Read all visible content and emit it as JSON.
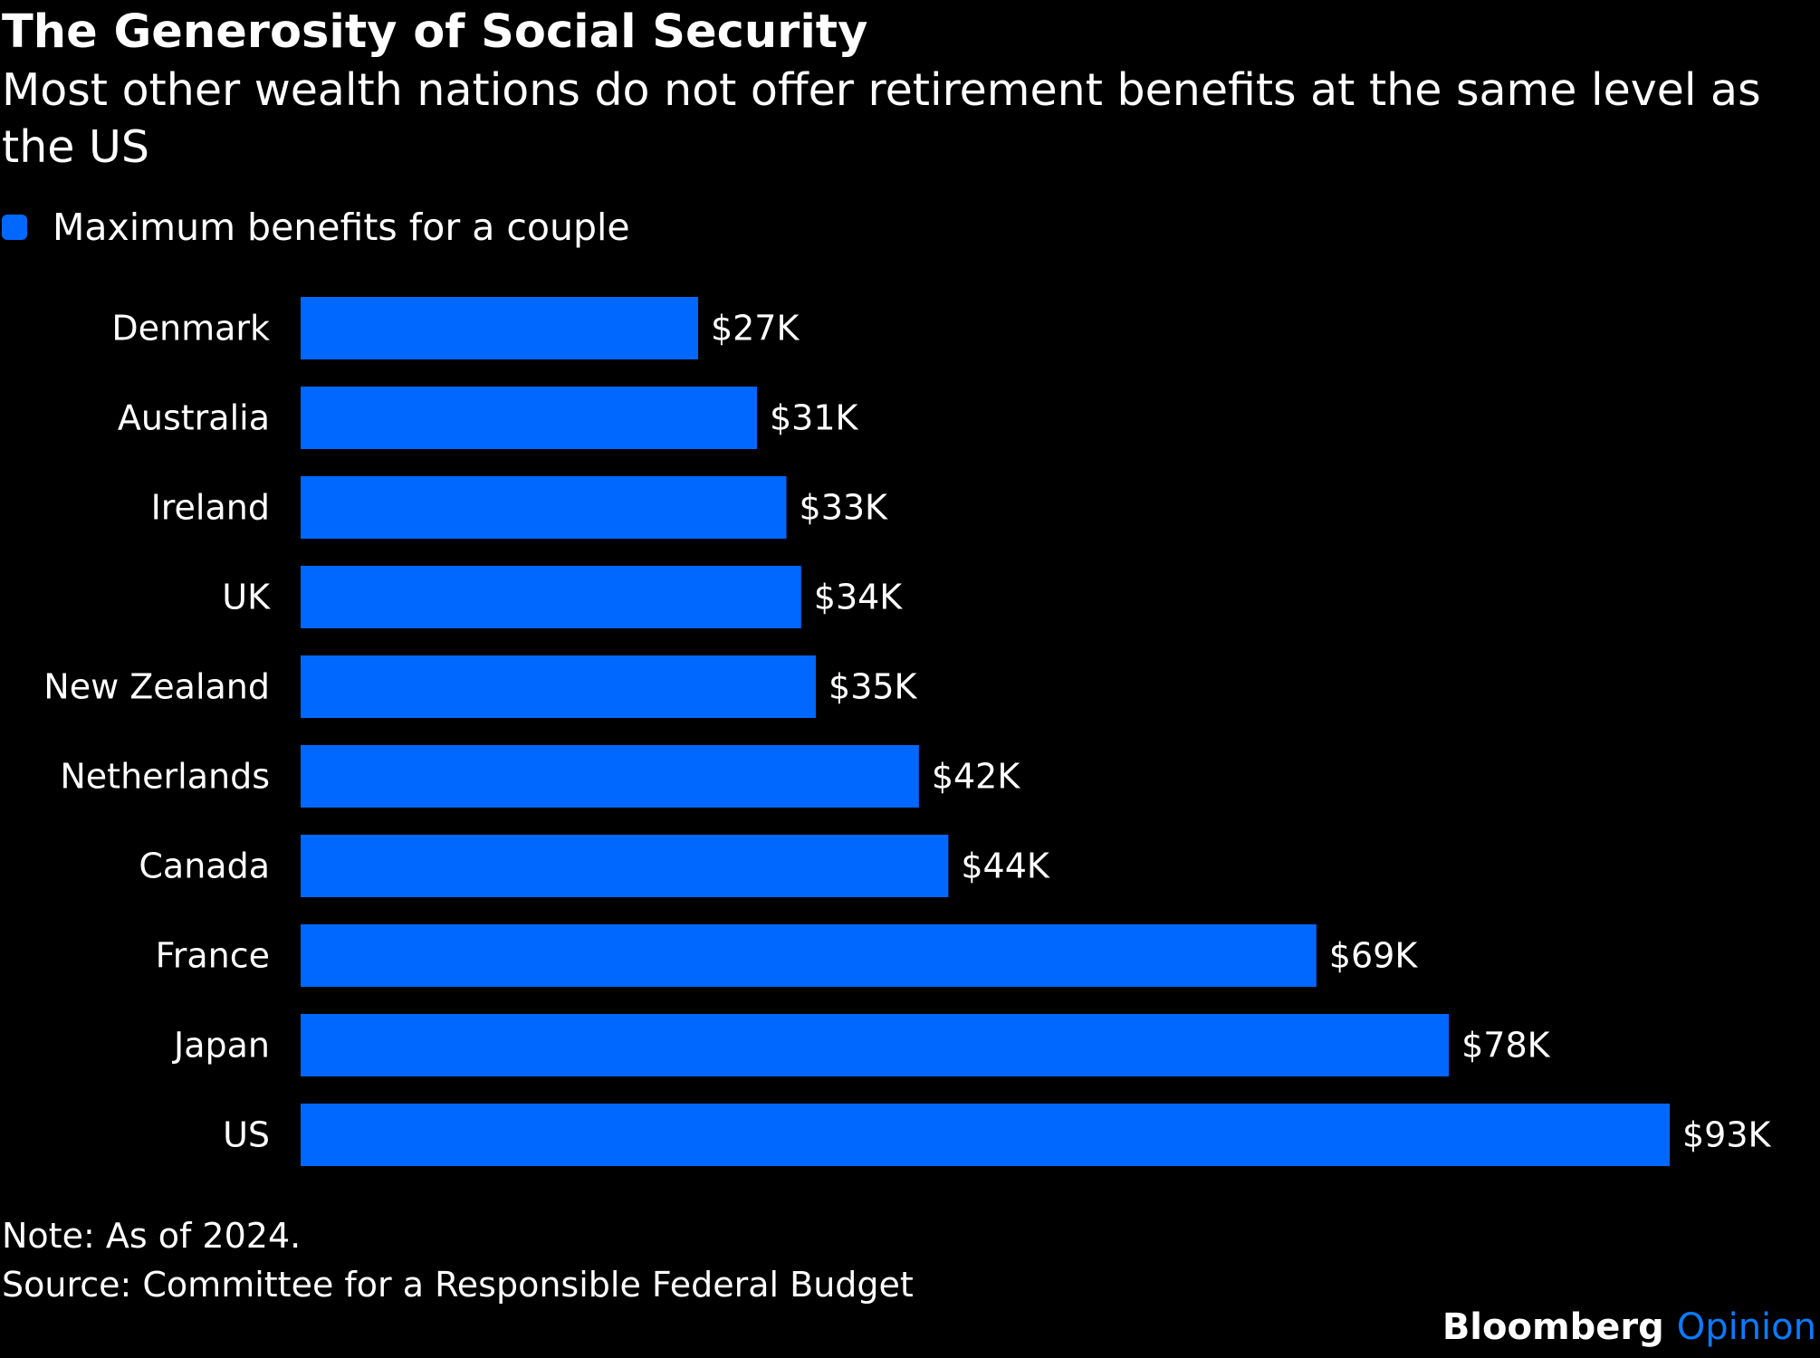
{
  "header": {
    "title": "The Generosity of Social Security",
    "subtitle": "Most other wealth nations do not offer retirement benefits at the same level as the US"
  },
  "legend": {
    "label": "Maximum benefits for a couple",
    "color": "#0068ff"
  },
  "chart_data": {
    "type": "bar",
    "orientation": "horizontal",
    "title": "The Generosity of Social Security",
    "subtitle": "Most other wealth nations do not offer retirement benefits at the same level as the US",
    "xlabel": "",
    "ylabel": "",
    "unit": "thousand USD",
    "grid": false,
    "legend_position": "top-left",
    "categories": [
      "Denmark",
      "Australia",
      "Ireland",
      "UK",
      "New Zealand",
      "Netherlands",
      "Canada",
      "France",
      "Japan",
      "US"
    ],
    "series": [
      {
        "name": "Maximum benefits for a couple",
        "color": "#0068ff",
        "values": [
          27,
          31,
          33,
          34,
          35,
          42,
          44,
          69,
          78,
          93
        ],
        "labels": [
          "$27K",
          "$31K",
          "$33K",
          "$34K",
          "$35K",
          "$42K",
          "$44K",
          "$69K",
          "$78K",
          "$93K"
        ]
      }
    ],
    "xlim": [
      0,
      93
    ]
  },
  "footer": {
    "note": "Note: As of 2024.",
    "source": "Source: Committee for a Responsible Federal Budget",
    "brand_main": "Bloomberg",
    "brand_accent": "Opinion",
    "brand_accent_color": "#0a7bff"
  }
}
